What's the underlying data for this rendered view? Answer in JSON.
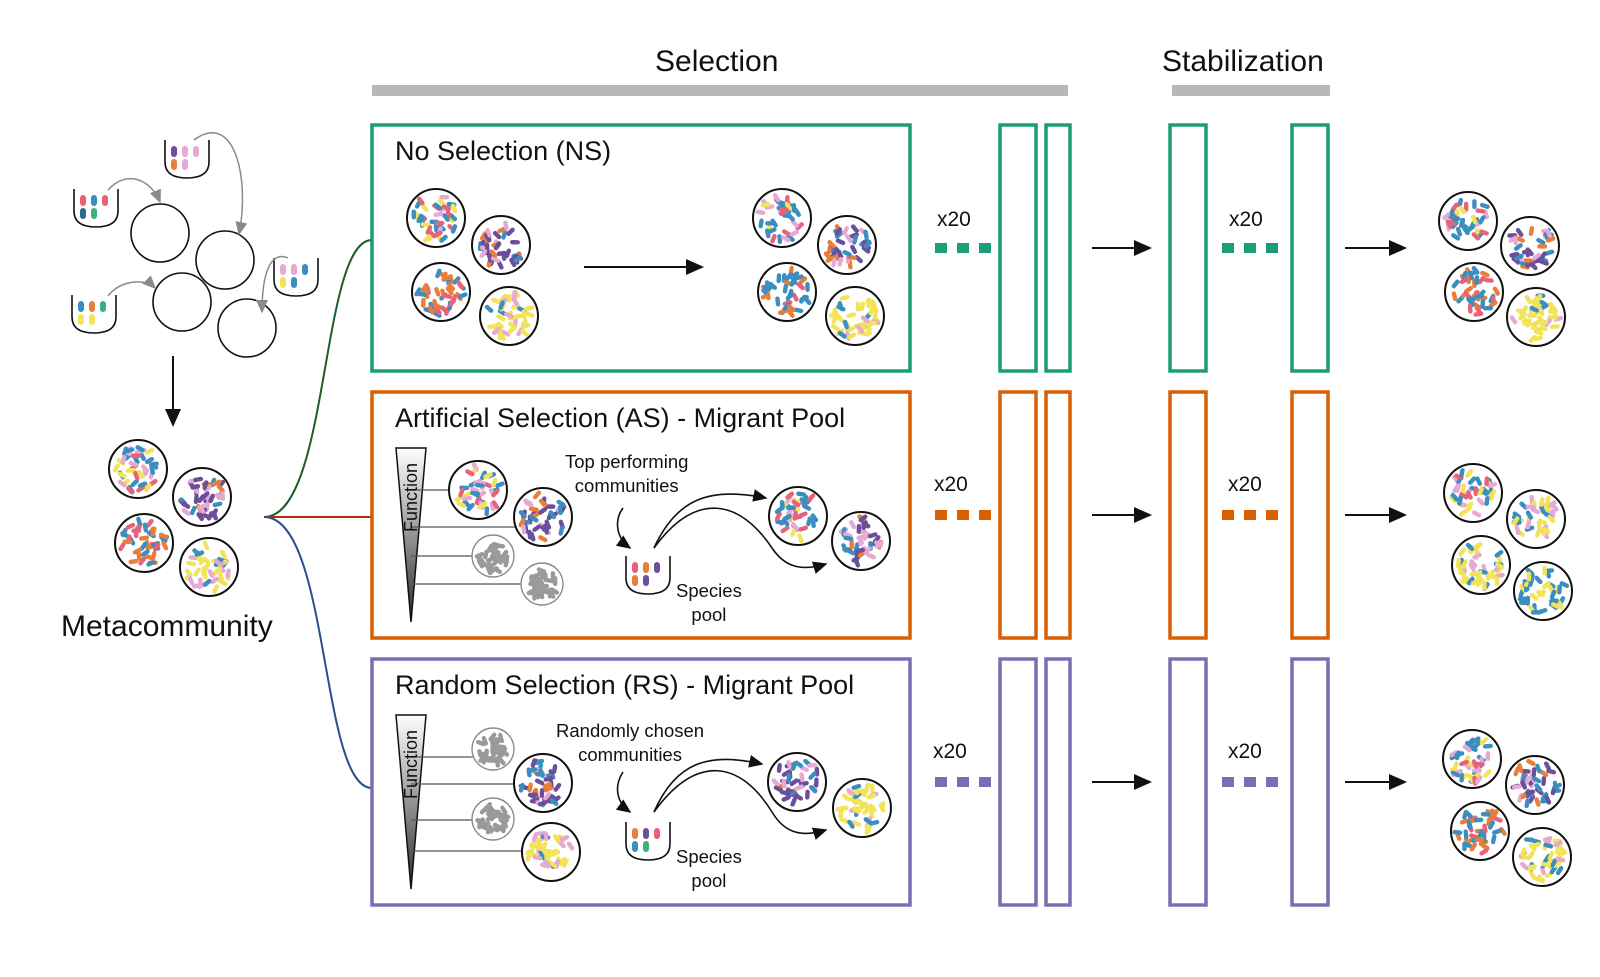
{
  "colors": {
    "ns": "#1a9e77",
    "as": "#d95f02",
    "rs": "#7570b3",
    "bar_gray": "#b8b8b8",
    "seed_palette_mixed": [
      "#e8637a",
      "#3b8fc0",
      "#f2e35a",
      "#3b8fc0",
      "#e6a9d4",
      "#e87e3a",
      "#6b4f9a"
    ]
  },
  "phases": {
    "selection": "Selection",
    "stabilization": "Stabilization"
  },
  "metacommunity": {
    "label": "Metacommunity"
  },
  "panels": [
    {
      "id": "ns",
      "title": "No Selection (NS)",
      "multiplier_selection": "x20",
      "multiplier_stabilization": "x20"
    },
    {
      "id": "as",
      "title": "Artificial Selection (AS) - Migrant Pool",
      "axis_label": "Function",
      "note": "Top performing\ncommunities",
      "pool_label": "Species\npool",
      "multiplier_selection": "x20",
      "multiplier_stabilization": "x20"
    },
    {
      "id": "rs",
      "title": "Random Selection (RS) - Migrant Pool",
      "axis_label": "Function",
      "note": "Randomly chosen\ncommunities",
      "pool_label": "Species\npool",
      "multiplier_selection": "x20",
      "multiplier_stabilization": "x20"
    }
  ],
  "community_types": {
    "mixed": [
      "#e8637a",
      "#3b8fc0",
      "#f2e35a",
      "#3b8fc0",
      "#e6a9d4"
    ],
    "purple": [
      "#6b4f9a",
      "#3b8fc0",
      "#e87e3a",
      "#e6a9d4",
      "#6b4f9a"
    ],
    "orange": [
      "#e87e3a",
      "#3b8fc0",
      "#e8637a",
      "#3b8fc0",
      "#e87e3a"
    ],
    "yellow": [
      "#f2e35a",
      "#f2e35a",
      "#3b8fc0",
      "#f2e35a",
      "#e6a9d4"
    ],
    "blue": [
      "#3b8fc0",
      "#3b8fc0",
      "#f2e35a",
      "#3b8fc0",
      "#3b8fc0"
    ],
    "discarded": [
      "#9a9a9a"
    ]
  }
}
